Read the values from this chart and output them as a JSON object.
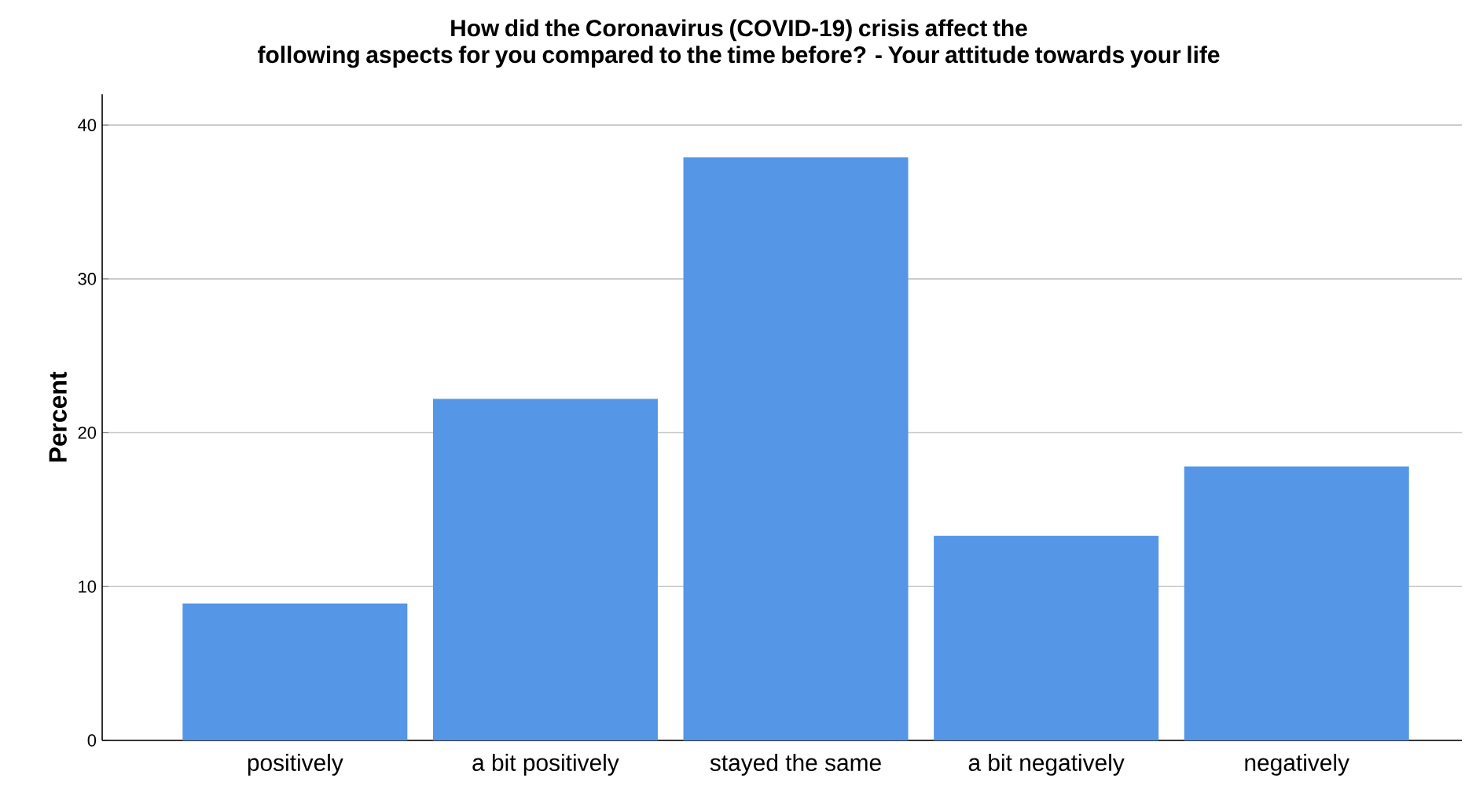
{
  "chart_data": {
    "type": "bar",
    "title": "How did the Coronavirus (COVID-19) crisis affect the following aspects for you compared to the time before? - Your attitude towards your life",
    "ylabel": "Percent",
    "categories": [
      "positively",
      "a bit positively",
      "stayed the same",
      "a bit negatively",
      "negatively"
    ],
    "values": [
      8.9,
      22.2,
      37.9,
      13.3,
      17.8
    ],
    "color": "#5596e6",
    "ylim": [
      0,
      42
    ],
    "yticks": [
      0,
      10,
      20,
      30,
      40
    ],
    "grid": "y"
  }
}
